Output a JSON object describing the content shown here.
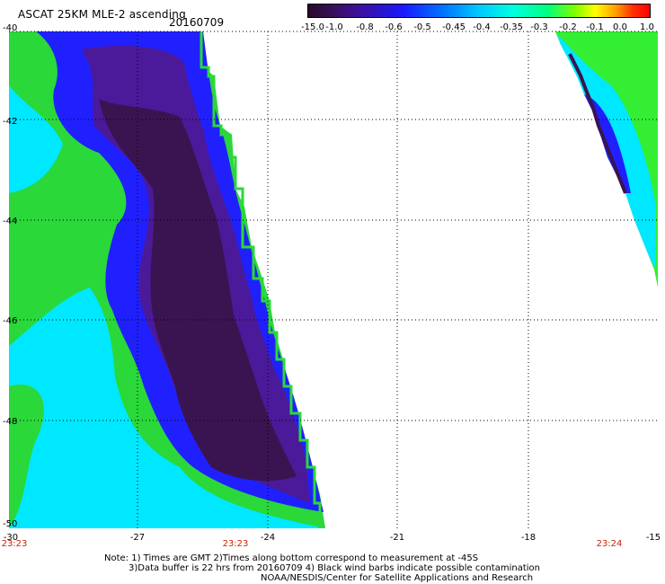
{
  "header": {
    "title": "ASCAT 25KM MLE-2 ascending",
    "date": "20160709"
  },
  "colorbar": {
    "labels": [
      "-15.0",
      "-1.0",
      "-0.8",
      "-0.6",
      "-0.5",
      "-0.45",
      "-0.4",
      "-0.35",
      "-0.3",
      "-0.2",
      "-0.1",
      "0.0",
      "1.0"
    ]
  },
  "axes": {
    "lat_labels": [
      "-40",
      "-42",
      "-44",
      "-46",
      "-48",
      "-50"
    ],
    "lon_labels": [
      "-30",
      "-27",
      "-24",
      "-21",
      "-18",
      "-15"
    ],
    "time_labels": [
      "23:23",
      "23:23",
      "23:24"
    ]
  },
  "notes": {
    "line1": "Note: 1) Times are GMT 2)Times along bottom correspond to measurement at -45S",
    "line2": "3)Data buffer is 22 hrs from 20160709 4) Black wind barbs indicate possible contamination",
    "line3": "NOAA/NESDIS/Center for Satellite Applications and Research"
  },
  "colors": {
    "dark_purple": "#3a1450",
    "purple": "#4a1a9a",
    "blue": "#1a1aff",
    "cyan": "#00e8ff",
    "green": "#40ff40",
    "grid": "#000000"
  }
}
